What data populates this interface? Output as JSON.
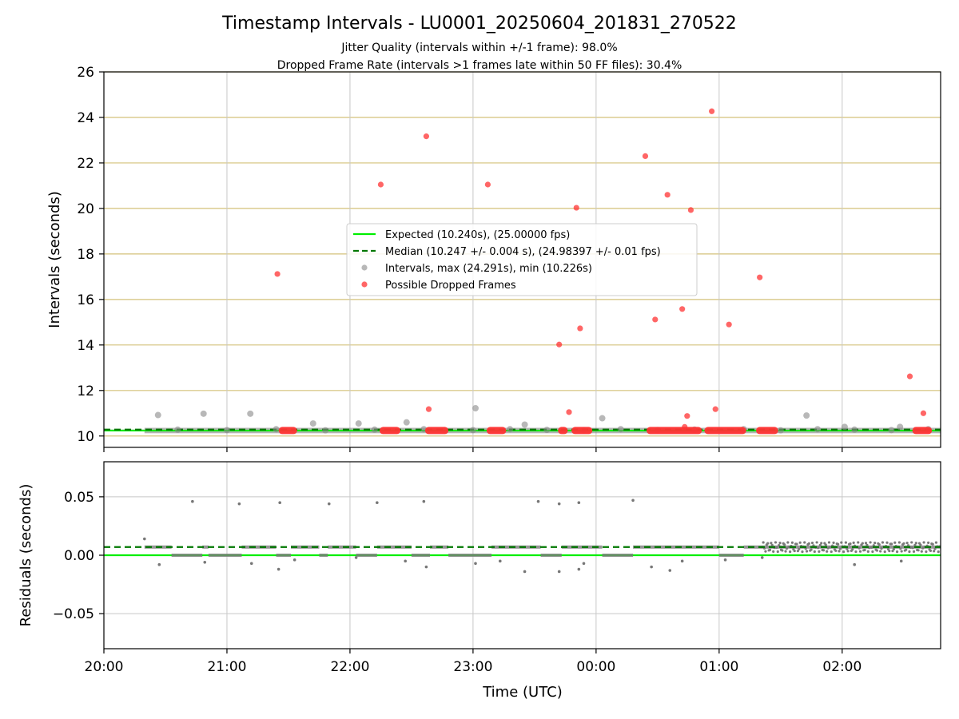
{
  "chart_data": [
    {
      "type": "scatter",
      "title": "Timestamp Intervals - LU0001_20250604_201831_270522",
      "subtitle_lines": [
        "Jitter Quality (intervals within +/-1 frame): 98.0%",
        "Dropped Frame Rate (intervals >1 frames late within 50 FF files): 30.4%"
      ],
      "xlabel": "",
      "ylabel": "Intervals (seconds)",
      "x_unit": "hours since 20:00 UTC",
      "xlim": [
        0,
        6.8
      ],
      "ylim": [
        9.5,
        26
      ],
      "yticks": [
        10,
        12,
        14,
        16,
        18,
        20,
        22,
        24,
        26
      ],
      "ytick_labels": [
        "10",
        "12",
        "14",
        "16",
        "18",
        "20",
        "22",
        "24",
        "26"
      ],
      "grid": true,
      "legend_position": "center",
      "colors": {
        "expected": "#00ee00",
        "median": "#007700",
        "intervals": "#888888",
        "dropped": "#ff3333",
        "hgrid": "#d4c27a",
        "vgrid": "#c8c8c8"
      },
      "series": [
        {
          "name": "Expected (10.240s), (25.00000 fps)",
          "type": "hline",
          "y": 10.24
        },
        {
          "name": "Median (10.247 +/- 0.004 s), (24.98397 +/- 0.01 fps)",
          "type": "hline",
          "y": 10.247
        },
        {
          "name": "Intervals, max (24.291s), min (10.226s)",
          "points": [
            [
              0.44,
              10.92
            ],
            [
              0.81,
              10.98
            ],
            [
              1.19,
              10.98
            ],
            [
              1.7,
              10.55
            ],
            [
              2.07,
              10.55
            ],
            [
              2.46,
              10.6
            ],
            [
              3.02,
              11.22
            ],
            [
              3.42,
              10.5
            ],
            [
              4.05,
              10.78
            ],
            [
              5.71,
              10.9
            ],
            [
              6.02,
              10.4
            ],
            [
              6.47,
              10.4
            ],
            [
              0.6,
              10.28
            ],
            [
              1.0,
              10.26
            ],
            [
              1.4,
              10.3
            ],
            [
              1.8,
              10.25
            ],
            [
              2.2,
              10.28
            ],
            [
              2.6,
              10.3
            ],
            [
              3.0,
              10.26
            ],
            [
              3.3,
              10.3
            ],
            [
              3.6,
              10.27
            ],
            [
              3.9,
              10.25
            ],
            [
              4.2,
              10.3
            ],
            [
              4.5,
              10.26
            ],
            [
              4.8,
              10.28
            ],
            [
              5.2,
              10.3
            ],
            [
              5.5,
              10.25
            ],
            [
              5.8,
              10.3
            ],
            [
              6.1,
              10.28
            ],
            [
              6.4,
              10.26
            ],
            [
              6.7,
              10.3
            ]
          ]
        },
        {
          "name": "Possible Dropped Frames",
          "points": [
            [
              1.41,
              17.12
            ],
            [
              2.25,
              21.05
            ],
            [
              2.62,
              23.17
            ],
            [
              2.64,
              11.18
            ],
            [
              3.12,
              21.05
            ],
            [
              3.7,
              14.02
            ],
            [
              3.78,
              11.05
            ],
            [
              3.84,
              20.03
            ],
            [
              3.87,
              14.73
            ],
            [
              4.4,
              22.3
            ],
            [
              4.48,
              15.12
            ],
            [
              4.58,
              20.6
            ],
            [
              4.7,
              15.58
            ],
            [
              4.74,
              10.88
            ],
            [
              4.77,
              19.93
            ],
            [
              4.94,
              24.27
            ],
            [
              4.97,
              11.18
            ],
            [
              5.08,
              14.9
            ],
            [
              5.33,
              16.97
            ],
            [
              6.55,
              12.62
            ],
            [
              6.66,
              11.0
            ],
            [
              4.72,
              10.4
            ]
          ]
        },
        {
          "name": "",
          "type": "dense_runs",
          "runs": [
            [
              1.42,
              1.57
            ],
            [
              2.24,
              2.41
            ],
            [
              2.61,
              2.8
            ],
            [
              3.11,
              3.27
            ],
            [
              3.69,
              3.77
            ],
            [
              3.8,
              3.97
            ],
            [
              4.41,
              4.86
            ],
            [
              4.88,
              5.22
            ],
            [
              5.3,
              5.48
            ],
            [
              6.57,
              6.73
            ]
          ],
          "y": 10.24
        }
      ]
    },
    {
      "type": "scatter",
      "title": "",
      "xlabel": "Time (UTC)",
      "ylabel": "Residuals (seconds)",
      "x_unit": "hours since 20:00 UTC",
      "xlim": [
        0,
        6.8
      ],
      "ylim": [
        -0.08,
        0.08
      ],
      "yticks": [
        -0.05,
        0.0,
        0.05
      ],
      "ytick_labels": [
        "−0.05",
        "0.00",
        "0.05"
      ],
      "xticks": [
        0,
        1,
        2,
        3,
        4,
        5,
        6
      ],
      "xtick_labels": [
        "20:00",
        "21:00",
        "22:00",
        "23:00",
        "00:00",
        "01:00",
        "02:00"
      ],
      "grid": true,
      "series": [
        {
          "name": "",
          "type": "hline",
          "y": 0.0
        },
        {
          "name": "",
          "type": "hline",
          "y": 0.007
        },
        {
          "name": "",
          "points": [
            [
              0.72,
              0.046
            ],
            [
              1.1,
              0.044
            ],
            [
              1.43,
              0.045
            ],
            [
              1.83,
              0.044
            ],
            [
              2.22,
              0.045
            ],
            [
              2.6,
              0.046
            ],
            [
              3.53,
              0.046
            ],
            [
              3.7,
              0.044
            ],
            [
              3.86,
              0.045
            ],
            [
              4.3,
              0.047
            ],
            [
              0.33,
              0.014
            ],
            [
              0.45,
              -0.008
            ],
            [
              0.82,
              -0.006
            ],
            [
              1.2,
              -0.007
            ],
            [
              1.42,
              -0.012
            ],
            [
              1.55,
              -0.004
            ],
            [
              2.05,
              -0.002
            ],
            [
              2.45,
              -0.005
            ],
            [
              2.62,
              -0.01
            ],
            [
              3.02,
              -0.007
            ],
            [
              3.22,
              -0.005
            ],
            [
              3.42,
              -0.014
            ],
            [
              3.7,
              -0.014
            ],
            [
              3.86,
              -0.012
            ],
            [
              3.9,
              -0.007
            ],
            [
              4.45,
              -0.01
            ],
            [
              4.6,
              -0.013
            ],
            [
              4.7,
              -0.005
            ],
            [
              5.05,
              -0.004
            ],
            [
              5.35,
              -0.002
            ],
            [
              6.1,
              -0.008
            ],
            [
              6.48,
              -0.005
            ]
          ]
        },
        {
          "name": "",
          "type": "band",
          "segments": [
            [
              0.33,
              0.55,
              0.007
            ],
            [
              0.55,
              0.8,
              0.0
            ],
            [
              0.8,
              0.85,
              0.007
            ],
            [
              0.85,
              1.12,
              0.0
            ],
            [
              1.12,
              1.4,
              0.007
            ],
            [
              1.4,
              1.52,
              0.0
            ],
            [
              1.52,
              1.75,
              0.007
            ],
            [
              1.75,
              1.82,
              0.0
            ],
            [
              1.82,
              2.05,
              0.007
            ],
            [
              2.05,
              2.22,
              0.0
            ],
            [
              2.22,
              2.5,
              0.007
            ],
            [
              2.5,
              2.65,
              0.0
            ],
            [
              2.65,
              2.8,
              0.007
            ],
            [
              2.8,
              3.15,
              0.0
            ],
            [
              3.15,
              3.55,
              0.007
            ],
            [
              3.55,
              3.72,
              0.0
            ],
            [
              3.72,
              4.05,
              0.007
            ],
            [
              4.05,
              4.3,
              0.0
            ],
            [
              4.3,
              5.0,
              0.007
            ],
            [
              5.0,
              5.2,
              0.0
            ],
            [
              5.2,
              5.35,
              0.007
            ],
            [
              5.35,
              6.8,
              0.007
            ]
          ]
        }
      ]
    }
  ],
  "legend": {
    "items": [
      {
        "label": "Expected (10.240s), (25.00000 fps)",
        "kind": "line"
      },
      {
        "label": "Median (10.247 +/- 0.004 s), (24.98397 +/- 0.01 fps)",
        "kind": "dashed"
      },
      {
        "label": "Intervals, max (24.291s), min (10.226s)",
        "kind": "dot-gray"
      },
      {
        "label": "Possible Dropped Frames",
        "kind": "dot-red"
      }
    ]
  }
}
